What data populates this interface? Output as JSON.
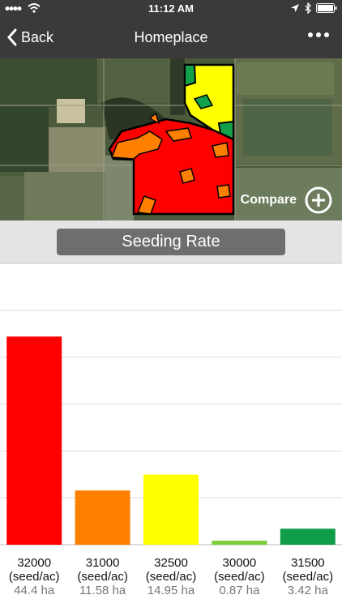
{
  "status_bar": {
    "time": "11:12 AM"
  },
  "nav": {
    "back_label": "Back",
    "title": "Homeplace"
  },
  "map": {
    "compare_label": "Compare"
  },
  "selector": {
    "label": "Seeding Rate"
  },
  "chart_data": {
    "type": "bar",
    "title": "",
    "xlabel": "",
    "ylabel": "",
    "grid": true,
    "ylim": [
      0,
      60
    ],
    "categories": [
      "32000",
      "31000",
      "32500",
      "30000",
      "31500"
    ],
    "unit": "(seed/ac)",
    "values": [
      44.4,
      11.58,
      14.95,
      0.87,
      3.42
    ],
    "value_labels": [
      "44.4 ha",
      "11.58 ha",
      "14.95 ha",
      "0.87 ha",
      "3.42 ha"
    ],
    "colors": [
      "#ff0000",
      "#ff7f00",
      "#ffff00",
      "#7ccf3a",
      "#0f9d4a"
    ]
  }
}
